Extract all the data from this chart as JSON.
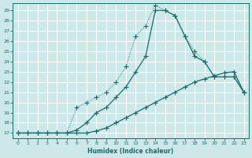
{
  "xlabel": "Humidex (Indice chaleur)",
  "bg_color": "#cce8e8",
  "grid_color": "#b8d8d8",
  "line_color": "#1a6b6b",
  "xlim": [
    -0.5,
    23.5
  ],
  "ylim": [
    16.5,
    29.7
  ],
  "xticks": [
    0,
    1,
    2,
    3,
    4,
    5,
    6,
    7,
    8,
    9,
    10,
    11,
    12,
    13,
    14,
    15,
    16,
    17,
    18,
    19,
    20,
    21,
    22,
    23
  ],
  "yticks": [
    17,
    18,
    19,
    20,
    21,
    22,
    23,
    24,
    25,
    26,
    27,
    28,
    29
  ],
  "line_straight_x": [
    0,
    1,
    2,
    3,
    4,
    5,
    6,
    7,
    8,
    9,
    10,
    11,
    12,
    13,
    14,
    15,
    16,
    17,
    18,
    19,
    20,
    21,
    22,
    23
  ],
  "line_straight_y": [
    17.0,
    17.0,
    17.0,
    17.0,
    17.0,
    17.0,
    17.0,
    17.0,
    17.2,
    17.5,
    18.0,
    18.5,
    19.0,
    19.5,
    20.0,
    20.5,
    21.0,
    21.5,
    22.0,
    22.3,
    22.6,
    22.9,
    23.0,
    21.0
  ],
  "line_mid_x": [
    0,
    1,
    2,
    3,
    4,
    5,
    6,
    7,
    8,
    9,
    10,
    11,
    12,
    13,
    14,
    15,
    16,
    17,
    18,
    19,
    20,
    21,
    22,
    23
  ],
  "line_mid_y": [
    17.0,
    17.0,
    17.0,
    17.0,
    17.0,
    17.0,
    17.3,
    18.0,
    19.0,
    19.5,
    20.5,
    21.5,
    23.0,
    24.5,
    29.0,
    29.0,
    28.5,
    26.5,
    24.5,
    24.0,
    22.5,
    22.5,
    22.5,
    21.0
  ],
  "line_top_x": [
    0,
    1,
    2,
    3,
    4,
    5,
    6,
    7,
    8,
    9,
    10,
    11,
    12,
    13,
    14,
    15,
    16,
    17,
    18,
    19,
    20,
    21,
    22,
    23
  ],
  "line_top_y": [
    17.0,
    17.0,
    17.0,
    17.0,
    17.0,
    17.0,
    19.5,
    20.0,
    20.5,
    21.0,
    22.0,
    23.5,
    26.5,
    27.5,
    29.5,
    29.0,
    28.5,
    26.5,
    25.0,
    24.0,
    22.5,
    22.5,
    22.5,
    21.0
  ]
}
